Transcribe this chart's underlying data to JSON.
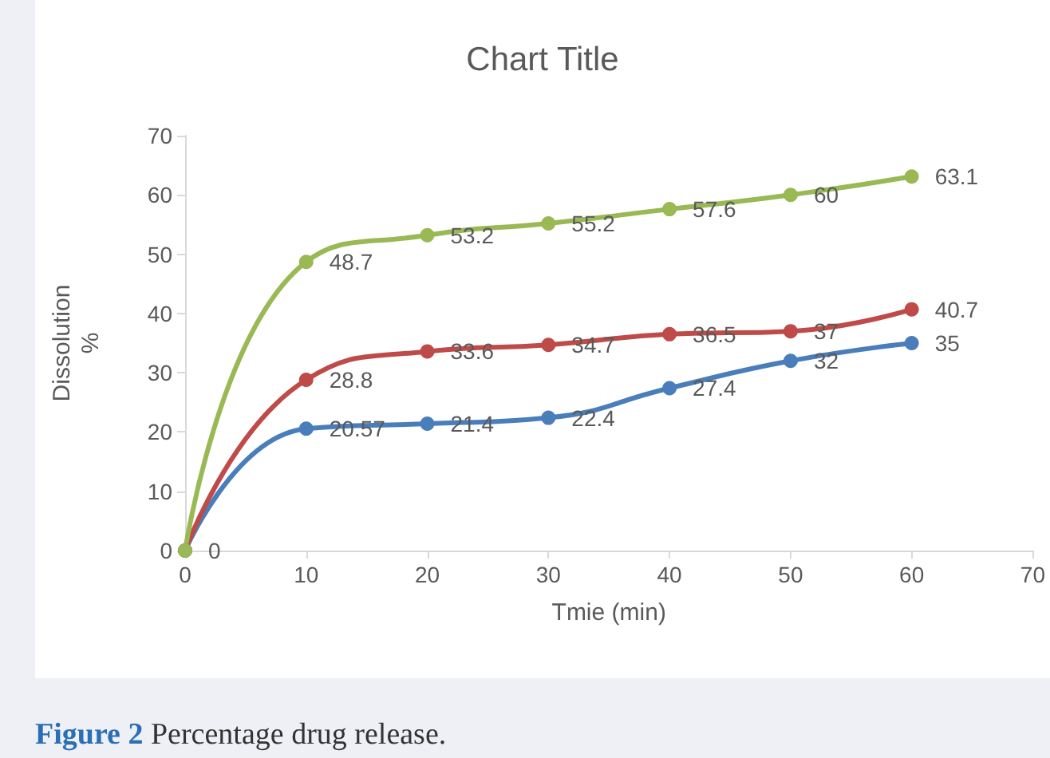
{
  "chart_data": {
    "type": "line",
    "title": "Chart Title",
    "xlabel": "Tmie (min)",
    "ylabel": "Dissolution\n%",
    "annotations": [
      "Figure 2 Percentage drug release."
    ],
    "x": [
      0,
      10,
      20,
      30,
      40,
      50,
      60
    ],
    "series": [
      {
        "color": "#4a7ebb",
        "values": [
          0,
          20.57,
          21.4,
          22.4,
          27.4,
          32,
          35
        ],
        "value_labels": [
          "0",
          "20.57",
          "21.4",
          "22.4",
          "27.4",
          "32",
          "35"
        ]
      },
      {
        "color": "#be4b48",
        "values": [
          0,
          28.8,
          33.6,
          34.7,
          36.5,
          37,
          40.7
        ],
        "value_labels": [
          null,
          "28.8",
          "33.6",
          "34.7",
          "36.5",
          "37",
          "40.7"
        ]
      },
      {
        "color": "#98b954",
        "values": [
          0,
          48.7,
          53.2,
          55.2,
          57.6,
          60,
          63.1
        ],
        "value_labels": [
          null,
          "48.7",
          "53.2",
          "55.2",
          "57.6",
          "60",
          "63.1"
        ]
      }
    ],
    "xlim": [
      0,
      70
    ],
    "xticks": [
      0,
      10,
      20,
      30,
      40,
      50,
      60,
      70
    ],
    "ylim": [
      0,
      70
    ],
    "yticks": [
      0,
      10,
      20,
      30,
      40,
      50,
      60,
      70
    ],
    "grid": false,
    "marker": "circle",
    "line_style": "solid"
  }
}
